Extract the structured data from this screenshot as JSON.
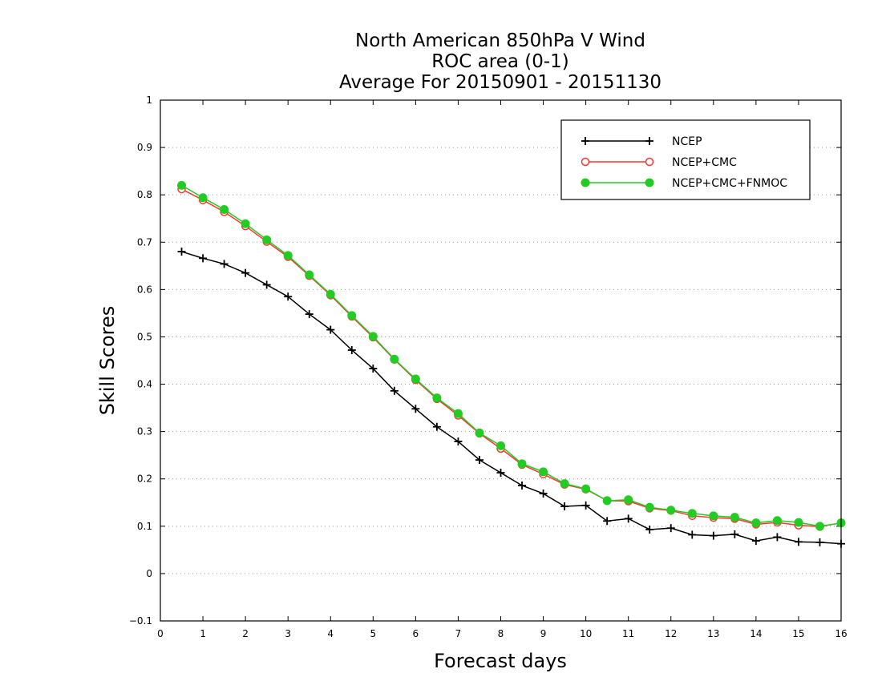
{
  "chart_data": {
    "type": "line",
    "title": [
      "North American 850hPa V Wind",
      "ROC area (0-1)",
      "Average For 20150901 - 20151130"
    ],
    "xlabel": "Forecast days",
    "ylabel": "Skill Scores",
    "xlim": [
      0,
      16
    ],
    "ylim": [
      -0.1,
      1
    ],
    "xticks": [
      0,
      1,
      2,
      3,
      4,
      5,
      6,
      7,
      8,
      9,
      10,
      11,
      12,
      13,
      14,
      15,
      16
    ],
    "xtick_labels": [
      "0",
      "1",
      "2",
      "3",
      "4",
      "5",
      "6",
      "7",
      "8",
      "9",
      "10",
      "11",
      "12",
      "13",
      "14",
      "15",
      "16"
    ],
    "yticks": [
      -0.1,
      0,
      0.1,
      0.2,
      0.3,
      0.4,
      0.5,
      0.6,
      0.7,
      0.8,
      0.9,
      1
    ],
    "ytick_labels": [
      "−0.1",
      "0",
      "0.1",
      "0.2",
      "0.3",
      "0.4",
      "0.5",
      "0.6",
      "0.7",
      "0.8",
      "0.9",
      "1"
    ],
    "grid": "horizontal dotted",
    "legend_position": "top-right",
    "x": [
      0.5,
      1,
      1.5,
      2,
      2.5,
      3,
      3.5,
      4,
      4.5,
      5,
      5.5,
      6,
      6.5,
      7,
      7.5,
      8,
      8.5,
      9,
      9.5,
      10,
      10.5,
      11,
      11.5,
      12,
      12.5,
      13,
      13.5,
      14,
      14.5,
      15,
      15.5,
      16
    ],
    "series": [
      {
        "name": "NCEP",
        "color": "#000000",
        "marker": "plus",
        "values": [
          0.68,
          0.666,
          0.654,
          0.635,
          0.61,
          0.585,
          0.548,
          0.515,
          0.472,
          0.433,
          0.386,
          0.348,
          0.31,
          0.279,
          0.24,
          0.213,
          0.186,
          0.169,
          0.142,
          0.144,
          0.111,
          0.116,
          0.093,
          0.096,
          0.082,
          0.08,
          0.083,
          0.069,
          0.077,
          0.067,
          0.066,
          0.063
        ]
      },
      {
        "name": "NCEP+CMC",
        "color": "#ff3333",
        "marker": "open-circle",
        "values": [
          0.812,
          0.789,
          0.764,
          0.734,
          0.701,
          0.669,
          0.629,
          0.588,
          0.543,
          0.499,
          0.452,
          0.409,
          0.369,
          0.334,
          0.296,
          0.264,
          0.23,
          0.21,
          0.188,
          0.178,
          0.154,
          0.153,
          0.138,
          0.133,
          0.122,
          0.118,
          0.116,
          0.104,
          0.108,
          0.102,
          0.099,
          0.107
        ]
      },
      {
        "name": "NCEP+CMC+FNMOC",
        "color": "#22cc22",
        "marker": "filled-circle",
        "values": [
          0.82,
          0.794,
          0.769,
          0.739,
          0.705,
          0.672,
          0.631,
          0.59,
          0.545,
          0.501,
          0.453,
          0.411,
          0.371,
          0.338,
          0.297,
          0.27,
          0.232,
          0.215,
          0.19,
          0.179,
          0.154,
          0.156,
          0.14,
          0.134,
          0.127,
          0.122,
          0.119,
          0.107,
          0.112,
          0.108,
          0.1,
          0.107
        ]
      }
    ]
  }
}
